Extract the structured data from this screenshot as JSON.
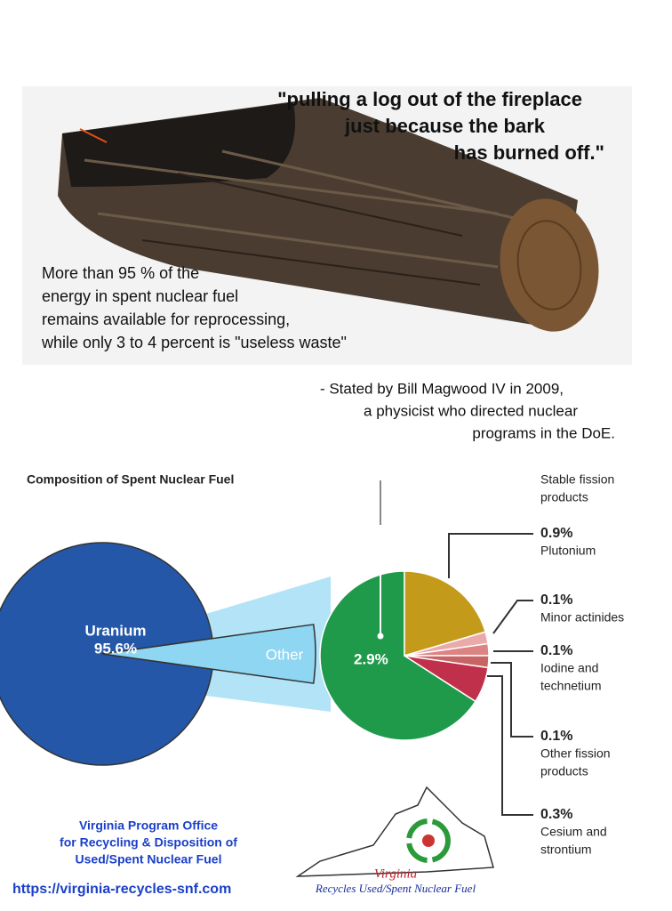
{
  "quote": [
    "\"pulling a log out of the fireplace",
    "just because the bark",
    "has burned off.\""
  ],
  "note": [
    "More than 95 % of the",
    "energy in spent nuclear fuel",
    "remains available for reprocessing,",
    "while only 3 to 4 percent is \"useless waste\""
  ],
  "attribution": [
    "- Stated by Bill Magwood IV in 2009,",
    "a physicist who directed nuclear",
    "programs in the DoE."
  ],
  "chart_data": {
    "type": "pie_of_pie",
    "title": "Composition of Spent Nuclear Fuel",
    "main": [
      {
        "name": "Uranium",
        "value": 95.6,
        "value_label": "95.6%",
        "color": "#2457a8"
      },
      {
        "name": "Other",
        "value": 4.4,
        "color": "#8fd6f2"
      }
    ],
    "secondary": [
      {
        "name_lines": [
          "Stable fission",
          "products"
        ],
        "value": 2.9,
        "value_label": "2.9%",
        "color": "#1f9a4a"
      },
      {
        "name_lines": [
          "Plutonium"
        ],
        "value": 0.9,
        "value_label": "0.9%",
        "color": "#c49a1a"
      },
      {
        "name_lines": [
          "Minor actinides"
        ],
        "value": 0.1,
        "value_label": "0.1%",
        "color": "#eaaaaa"
      },
      {
        "name_lines": [
          "Iodine and",
          "technetium"
        ],
        "value": 0.1,
        "value_label": "0.1%",
        "color": "#dc8484"
      },
      {
        "name_lines": [
          "Other fission",
          "products"
        ],
        "value": 0.1,
        "value_label": "0.1%",
        "color": "#c86464"
      },
      {
        "name_lines": [
          "Cesium and",
          "strontium"
        ],
        "value": 0.3,
        "value_label": "0.3%",
        "color": "#c0304a"
      }
    ]
  },
  "footer": {
    "office": [
      "Virginia Program Office",
      "for Recycling & Disposition of",
      "Used/Spent Nuclear Fuel"
    ],
    "url": "https://virginia-recycles-snf.com",
    "logo": [
      "Virginia",
      "Recycles Used/Spent Nuclear Fuel"
    ]
  }
}
